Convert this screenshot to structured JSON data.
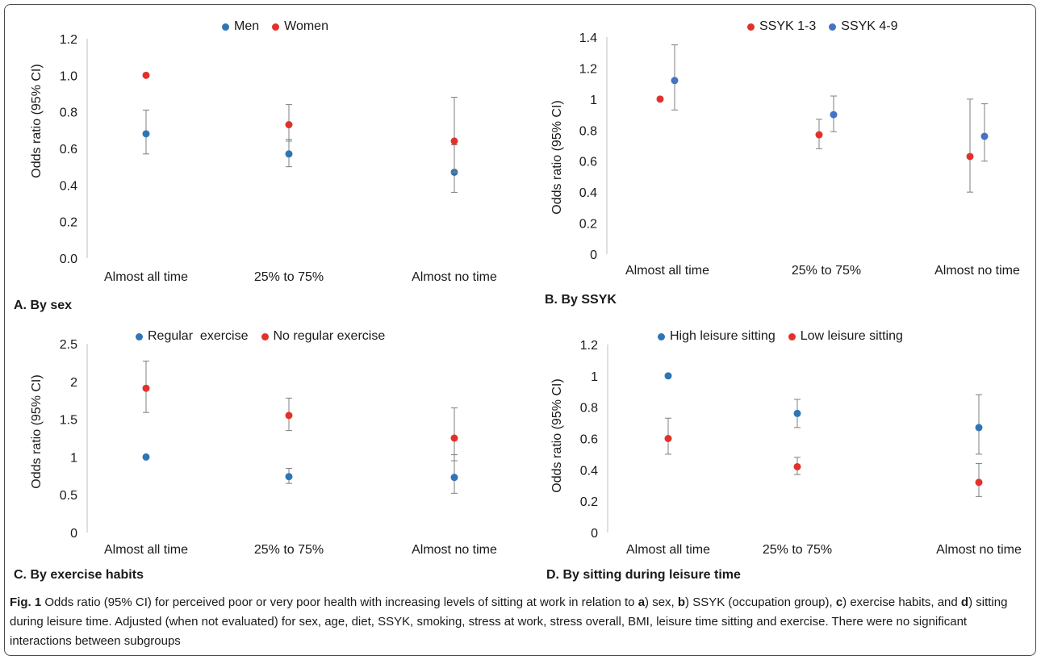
{
  "colors": {
    "blue": "#2E75B6",
    "red": "#E2312B",
    "bar": "#7f7f7f",
    "axis": "#bfbfbf"
  },
  "caption": {
    "fig_label": "Fig. 1",
    "text_1": " Odds ratio (95% CI) for perceived poor or very poor health with increasing levels of sitting at work in relation to ",
    "a": "a",
    "text_a": ") sex, ",
    "b": "b",
    "text_b": ") SSYK (occupation group), ",
    "c": "c",
    "text_c": ") exercise habits, and ",
    "d": "d",
    "text_d": ") sitting during leisure time. Adjusted (when not evaluated) for sex, age, diet, SSYK, smoking, stress at work, stress overall, BMI, leisure time sitting and exercise. There were no significant interactions between subgroups"
  },
  "chart_data": [
    {
      "type": "scatter",
      "title": "A. By sex",
      "ylabel": "Odds ratio (95% CI)",
      "xlabel": "",
      "ylim": [
        0,
        1.2
      ],
      "yticks": [
        "0.0",
        "0.2",
        "0.4",
        "0.6",
        "0.8",
        "1.0",
        "1.2"
      ],
      "categories": [
        "Almost all time",
        "25% to 75%",
        "Almost no time"
      ],
      "legend_position": "top",
      "grid": false,
      "series": [
        {
          "name": "Men",
          "color": "#2E75B6",
          "values": [
            0.68,
            0.57,
            0.47
          ],
          "ci_low": [
            0.57,
            0.5,
            0.36
          ],
          "ci_high": [
            0.81,
            0.65,
            0.62
          ]
        },
        {
          "name": "Women",
          "color": "#E2312B",
          "values": [
            1.0,
            0.73,
            0.64
          ],
          "ci_low": [
            null,
            0.64,
            0.47
          ],
          "ci_high": [
            null,
            0.84,
            0.88
          ]
        }
      ]
    },
    {
      "type": "scatter",
      "title": "B. By SSYK",
      "ylabel": "Odds ratio (95% CI)",
      "xlabel": "",
      "ylim": [
        0,
        1.4
      ],
      "yticks": [
        "0",
        "0.2",
        "0.4",
        "0.6",
        "0.8",
        "1",
        "1.2",
        "1.4"
      ],
      "categories": [
        "Almost all time",
        "25% to 75%",
        "Almost no time"
      ],
      "legend_position": "top",
      "grid": false,
      "series": [
        {
          "name": "SSYK 1-3",
          "color": "#E2312B",
          "values": [
            1.0,
            0.77,
            0.63
          ],
          "ci_low": [
            null,
            0.68,
            0.4
          ],
          "ci_high": [
            null,
            0.87,
            1.0
          ]
        },
        {
          "name": "SSYK 4-9",
          "color": "#4472C4",
          "values": [
            1.12,
            0.9,
            0.76
          ],
          "ci_low": [
            0.93,
            0.79,
            0.6
          ],
          "ci_high": [
            1.35,
            1.02,
            0.97
          ]
        }
      ]
    },
    {
      "type": "scatter",
      "title": "C. By exercise habits",
      "ylabel": "Odds ratio (95% CI)",
      "xlabel": "",
      "ylim": [
        0,
        2.5
      ],
      "yticks": [
        "0",
        "0.5",
        "1",
        "1.5",
        "2",
        "2.5"
      ],
      "categories": [
        "Almost all time",
        "25% to 75%",
        "Almost no time"
      ],
      "legend_position": "top",
      "grid": false,
      "series": [
        {
          "name": "Regular  exercise",
          "color": "#2E75B6",
          "values": [
            1.0,
            0.74,
            0.73
          ],
          "ci_low": [
            null,
            0.65,
            0.52
          ],
          "ci_high": [
            null,
            0.85,
            1.03
          ]
        },
        {
          "name": "No regular exercise",
          "color": "#E2312B",
          "values": [
            1.91,
            1.55,
            1.25
          ],
          "ci_low": [
            1.59,
            1.35,
            0.95
          ],
          "ci_high": [
            2.27,
            1.78,
            1.65
          ]
        }
      ]
    },
    {
      "type": "scatter",
      "title": "D. By sitting during leisure time",
      "ylabel": "Odds ratio (95% CI)",
      "xlabel": "",
      "ylim": [
        0,
        1.2
      ],
      "yticks": [
        "0",
        "0.2",
        "0.4",
        "0.6",
        "0.8",
        "1",
        "1.2"
      ],
      "categories": [
        "Almost all time",
        "25% to 75%",
        "Almost no time"
      ],
      "legend_position": "top",
      "grid": false,
      "series": [
        {
          "name": "High leisure sitting",
          "color": "#2E75B6",
          "values": [
            1.0,
            0.76,
            0.67
          ],
          "ci_low": [
            null,
            0.67,
            0.5
          ],
          "ci_high": [
            null,
            0.85,
            0.88
          ]
        },
        {
          "name": "Low leisure sitting",
          "color": "#E2312B",
          "values": [
            0.6,
            0.42,
            0.32
          ],
          "ci_low": [
            0.5,
            0.37,
            0.23
          ],
          "ci_high": [
            0.73,
            0.48,
            0.44
          ]
        }
      ]
    }
  ]
}
